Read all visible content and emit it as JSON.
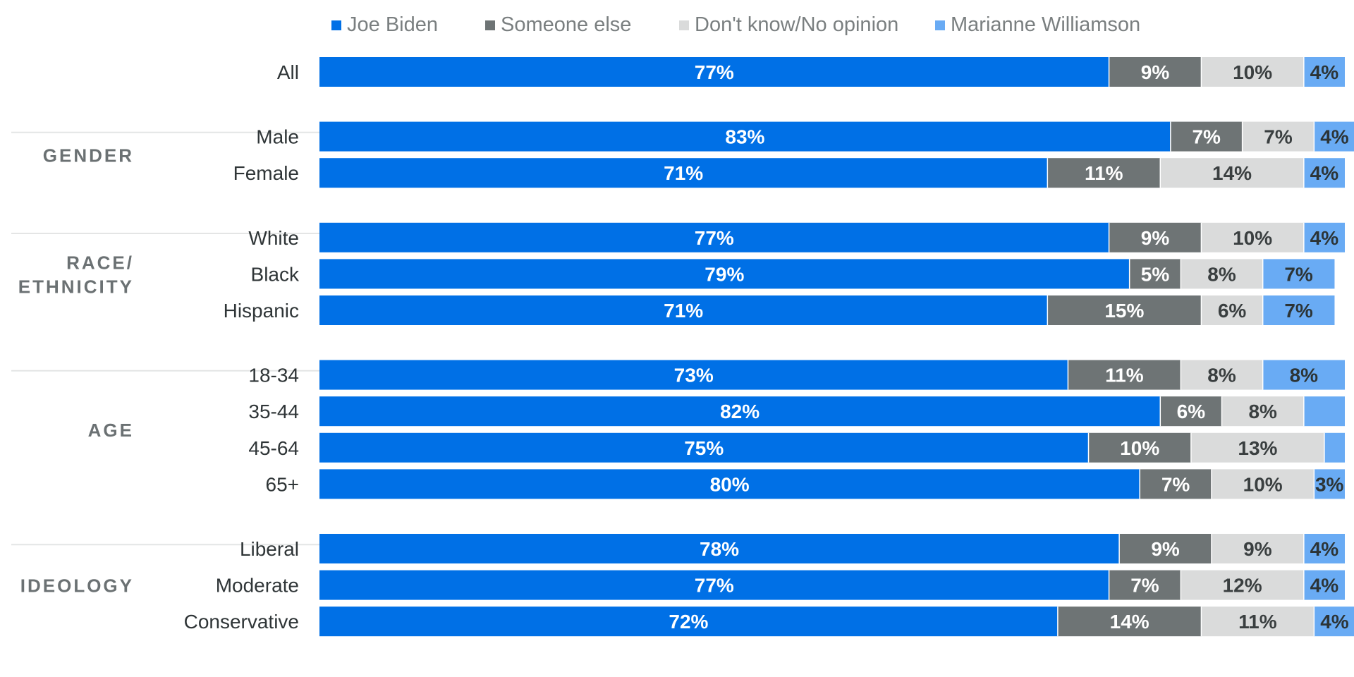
{
  "chart_data": {
    "type": "bar",
    "orientation": "horizontal",
    "stacked": true,
    "xlim": [
      0,
      100
    ],
    "grid": false,
    "legend_position": "top",
    "legend": [
      {
        "name": "Joe Biden",
        "color": "#0070E6"
      },
      {
        "name": "Someone else",
        "color": "#6E7475"
      },
      {
        "name": "Don't know/No opinion",
        "color": "#DADBDB"
      },
      {
        "name": "Marianne Williamson",
        "color": "#69ABF4"
      }
    ],
    "series": [
      {
        "name": "Joe Biden",
        "color": "#0070E6",
        "label_color": "#ffffff"
      },
      {
        "name": "Someone else",
        "color": "#6E7475",
        "label_color": "#ffffff"
      },
      {
        "name": "Don't know/No opinion",
        "color": "#DADBDB",
        "label_color": "#3A3F40"
      },
      {
        "name": "Marianne Williamson",
        "color": "#69ABF4",
        "label_color": "#2C3436"
      }
    ],
    "groups": [
      {
        "title": "",
        "rows": [
          {
            "category": "All",
            "values": [
              77,
              9,
              10,
              4
            ],
            "labels": [
              "77%",
              "9%",
              "10%",
              "4%"
            ]
          }
        ]
      },
      {
        "title": "GENDER",
        "rows": [
          {
            "category": "Male",
            "values": [
              83,
              7,
              7,
              4
            ],
            "labels": [
              "83%",
              "7%",
              "7%",
              "4%"
            ]
          },
          {
            "category": "Female",
            "values": [
              71,
              11,
              14,
              4
            ],
            "labels": [
              "71%",
              "11%",
              "14%",
              "4%"
            ]
          }
        ]
      },
      {
        "title": "RACE/\nETHNICITY",
        "rows": [
          {
            "category": "White",
            "values": [
              77,
              9,
              10,
              4
            ],
            "labels": [
              "77%",
              "9%",
              "10%",
              "4%"
            ]
          },
          {
            "category": "Black",
            "values": [
              79,
              5,
              8,
              7
            ],
            "labels": [
              "79%",
              "5%",
              "8%",
              "7%"
            ]
          },
          {
            "category": "Hispanic",
            "values": [
              71,
              15,
              6,
              7
            ],
            "labels": [
              "71%",
              "15%",
              "6%",
              "7%"
            ]
          }
        ]
      },
      {
        "title": "AGE",
        "rows": [
          {
            "category": "18-34",
            "values": [
              73,
              11,
              8,
              8
            ],
            "labels": [
              "73%",
              "11%",
              "8%",
              "8%"
            ]
          },
          {
            "category": "35-44",
            "values": [
              82,
              6,
              8,
              4
            ],
            "labels": [
              "82%",
              "6%",
              "8%",
              ""
            ]
          },
          {
            "category": "45-64",
            "values": [
              75,
              10,
              13,
              2
            ],
            "labels": [
              "75%",
              "10%",
              "13%",
              ""
            ]
          },
          {
            "category": "65+",
            "values": [
              80,
              7,
              10,
              3
            ],
            "labels": [
              "80%",
              "7%",
              "10%",
              "3%"
            ]
          }
        ]
      },
      {
        "title": "IDEOLOGY",
        "rows": [
          {
            "category": "Liberal",
            "values": [
              78,
              9,
              9,
              4
            ],
            "labels": [
              "78%",
              "9%",
              "9%",
              "4%"
            ]
          },
          {
            "category": "Moderate",
            "values": [
              77,
              7,
              12,
              4
            ],
            "labels": [
              "77%",
              "7%",
              "12%",
              "4%"
            ]
          },
          {
            "category": "Conservative",
            "values": [
              72,
              14,
              11,
              4
            ],
            "labels": [
              "72%",
              "14%",
              "11%",
              "4%"
            ]
          }
        ]
      }
    ]
  }
}
